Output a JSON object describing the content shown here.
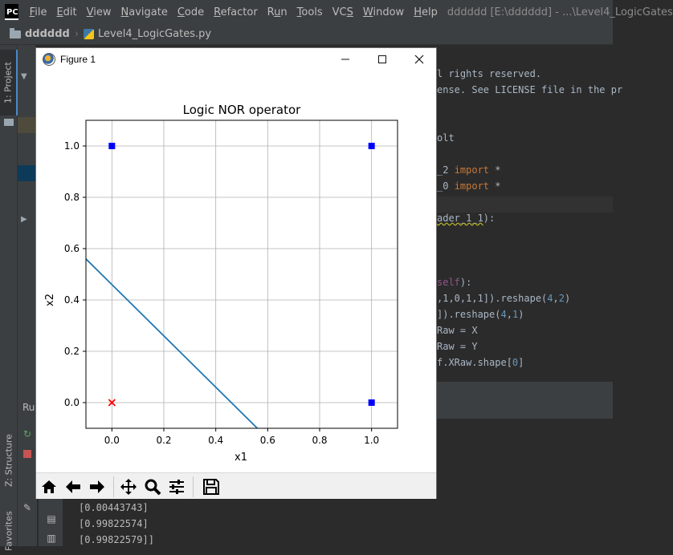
{
  "app": {
    "logo_text": "PC",
    "menu": [
      {
        "pre": "",
        "mn": "F",
        "post": "ile"
      },
      {
        "pre": "",
        "mn": "E",
        "post": "dit"
      },
      {
        "pre": "",
        "mn": "V",
        "post": "iew"
      },
      {
        "pre": "",
        "mn": "N",
        "post": "avigate"
      },
      {
        "pre": "",
        "mn": "C",
        "post": "ode"
      },
      {
        "pre": "",
        "mn": "R",
        "post": "efactor"
      },
      {
        "pre": "R",
        "mn": "u",
        "post": "n"
      },
      {
        "pre": "",
        "mn": "T",
        "post": "ools"
      },
      {
        "pre": "VC",
        "mn": "S",
        "post": ""
      },
      {
        "pre": "",
        "mn": "W",
        "post": "indow"
      },
      {
        "pre": "",
        "mn": "H",
        "post": "elp"
      }
    ],
    "window_title": "dddddd [E:\\dddddd] - ...\\Level4_LogicGates"
  },
  "breadcrumb": {
    "project": "dddddd",
    "file": "Level4_LogicGates.py"
  },
  "tool_tabs": {
    "project": "1: Project",
    "structure": "Z: Structure",
    "favorites": "Favorites"
  },
  "editor": {
    "lines": [
      {
        "parts": [
          {
            "t": "l rights reserved.",
            "c": "comment"
          }
        ]
      },
      {
        "parts": [
          {
            "t": "ense. See LICENSE file in the pr",
            "c": "comment"
          }
        ]
      },
      {
        "parts": [
          {
            "t": "",
            "c": ""
          }
        ]
      },
      {
        "parts": [
          {
            "t": "",
            "c": ""
          }
        ]
      },
      {
        "parts": [
          {
            "t": "olt",
            "c": "comment"
          }
        ]
      },
      {
        "parts": [
          {
            "t": "",
            "c": ""
          }
        ]
      },
      {
        "parts": [
          {
            "t": "_2 ",
            "c": ""
          },
          {
            "t": "import",
            "c": "kw"
          },
          {
            "t": " *",
            "c": ""
          }
        ]
      },
      {
        "parts": [
          {
            "t": "_0 ",
            "c": ""
          },
          {
            "t": "import",
            "c": "kw"
          },
          {
            "t": " *",
            "c": ""
          }
        ]
      },
      {
        "parts": [
          {
            "t": "",
            "c": ""
          }
        ]
      },
      {
        "parts": [
          {
            "t": "ader_1_1",
            "c": "warn"
          },
          {
            "t": "):",
            "c": ""
          }
        ]
      },
      {
        "parts": [
          {
            "t": "",
            "c": ""
          }
        ]
      },
      {
        "parts": [
          {
            "t": "",
            "c": ""
          }
        ]
      },
      {
        "parts": [
          {
            "t": "",
            "c": ""
          }
        ]
      },
      {
        "parts": [
          {
            "t": "self",
            "c": "slf"
          },
          {
            "t": "):",
            "c": ""
          }
        ]
      },
      {
        "parts": [
          {
            "t": ",1,0,1,1]).reshape(",
            "c": ""
          },
          {
            "t": "4",
            "c": "num"
          },
          {
            "t": ",",
            "c": ""
          },
          {
            "t": "2",
            "c": "num"
          },
          {
            "t": ")",
            "c": ""
          }
        ]
      },
      {
        "parts": [
          {
            "t": "]).reshape(",
            "c": ""
          },
          {
            "t": "4",
            "c": "num"
          },
          {
            "t": ",",
            "c": ""
          },
          {
            "t": "1",
            "c": "num"
          },
          {
            "t": ")",
            "c": ""
          }
        ]
      },
      {
        "parts": [
          {
            "t": "Raw = X",
            "c": ""
          }
        ]
      },
      {
        "parts": [
          {
            "t": "Raw = Y",
            "c": ""
          }
        ]
      },
      {
        "parts": [
          {
            "t": "f.XRaw.shape[",
            "c": ""
          },
          {
            "t": "0",
            "c": "num"
          },
          {
            "t": "]",
            "c": ""
          }
        ]
      }
    ]
  },
  "run_panel": {
    "header": "Ru",
    "output": [
      "[0.00443743]",
      "[0.99822574]",
      "[0.99822579]]"
    ]
  },
  "figure": {
    "window_title": "Figure 1",
    "toolbar_tools": [
      "home-icon",
      "back-icon",
      "forward-icon",
      "pan-icon",
      "zoom-icon",
      "configure-subplots-icon",
      "save-icon"
    ]
  },
  "chart_data": {
    "type": "scatter",
    "title": "Logic NOR operator",
    "xlabel": "x1",
    "ylabel": "x2",
    "xlim": [
      -0.1,
      1.1
    ],
    "ylim": [
      -0.1,
      1.1
    ],
    "x_ticks": [
      0.0,
      0.2,
      0.4,
      0.6,
      0.8,
      1.0
    ],
    "y_ticks": [
      0.0,
      0.2,
      0.4,
      0.6,
      0.8,
      1.0
    ],
    "x_tick_labels": [
      "0.0",
      "0.2",
      "0.4",
      "0.6",
      "0.8",
      "1.0"
    ],
    "y_tick_labels": [
      "0.0",
      "0.2",
      "0.4",
      "0.6",
      "0.8",
      "1.0"
    ],
    "grid": true,
    "series": [
      {
        "marker": "square",
        "color": "#0000ff",
        "points": [
          [
            0,
            1
          ],
          [
            1,
            1
          ],
          [
            1,
            0
          ]
        ]
      },
      {
        "marker": "x",
        "color": "#ff0000",
        "points": [
          [
            0,
            0
          ]
        ]
      }
    ],
    "lines": [
      {
        "color": "#1f77b4",
        "points": [
          [
            -0.1,
            0.56
          ],
          [
            0.56,
            -0.1
          ]
        ]
      }
    ]
  }
}
